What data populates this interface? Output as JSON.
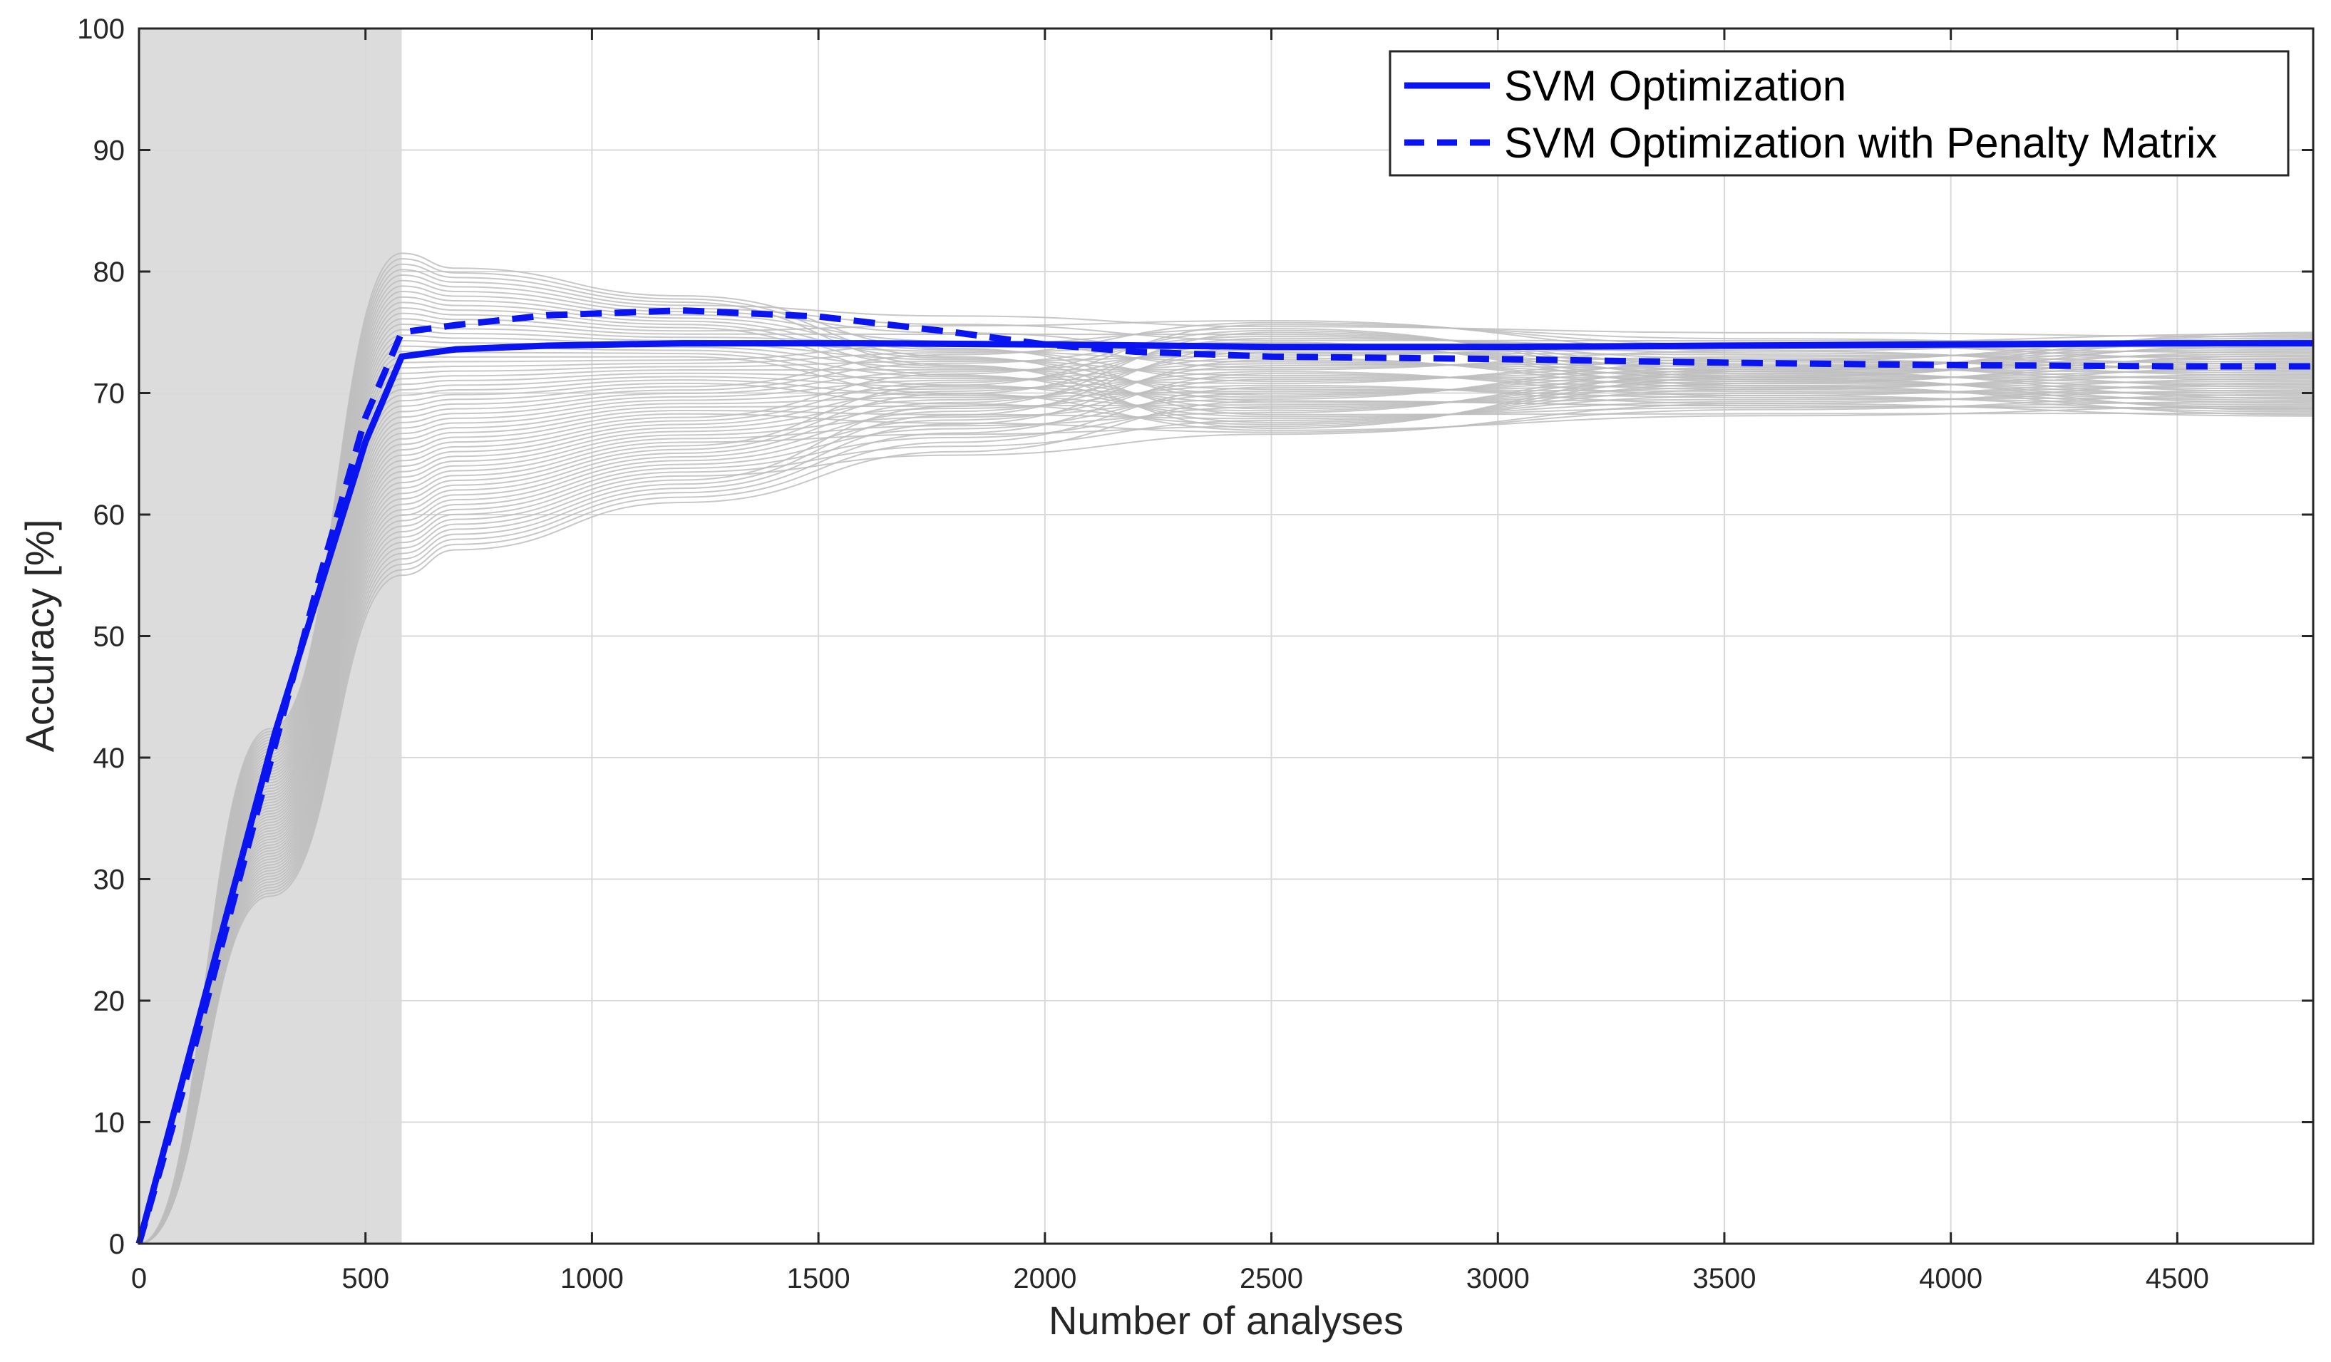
{
  "chart_data": {
    "type": "line",
    "title": "",
    "xlabel": "Number of analyses",
    "ylabel": "Accuracy [%]",
    "xlim": [
      0,
      4800
    ],
    "ylim": [
      0,
      100
    ],
    "grid": true,
    "legend_position": "top-right",
    "x_ticks": [
      0,
      500,
      1000,
      1500,
      2000,
      2500,
      3000,
      3500,
      4000,
      4500
    ],
    "x_tick_labels": [
      "0",
      "500",
      "1000",
      "1500",
      "2000",
      "2500",
      "3000",
      "3500",
      "4000",
      "4500"
    ],
    "y_ticks": [
      0,
      10,
      20,
      30,
      40,
      50,
      60,
      70,
      80,
      90,
      100
    ],
    "y_tick_labels": [
      "0",
      "10",
      "20",
      "30",
      "40",
      "50",
      "60",
      "70",
      "80",
      "90",
      "100"
    ],
    "shaded_region": {
      "x_range": [
        0,
        580
      ],
      "color": "#dcdcdc"
    },
    "background_runs": {
      "color": "#bdbdbd",
      "count": 60,
      "initial_ramp_end": 580,
      "value_range_at_580": [
        55,
        81.5
      ],
      "value_range_at_1200": [
        61,
        78
      ],
      "value_range_at_2500": [
        66.5,
        76
      ],
      "value_range_at_4800": [
        68,
        75
      ]
    },
    "series": [
      {
        "name": "SVM Optimization",
        "color": "#0a14f0",
        "dash": "solid",
        "x": [
          0,
          100,
          200,
          300,
          400,
          500,
          580,
          700,
          900,
          1200,
          1600,
          2000,
          2500,
          3000,
          3500,
          4000,
          4500,
          4800
        ],
        "y": [
          0,
          14,
          28,
          42,
          54,
          66,
          73,
          73.6,
          73.9,
          74.1,
          74.1,
          74.0,
          73.8,
          73.8,
          73.9,
          74.0,
          74.1,
          74.1
        ]
      },
      {
        "name": "SVM Optimization with Penalty Matrix",
        "color": "#0a14f0",
        "dash": "dashed",
        "x": [
          0,
          100,
          200,
          300,
          400,
          500,
          580,
          700,
          900,
          1200,
          1500,
          1800,
          2000,
          2200,
          2500,
          3000,
          3500,
          4000,
          4500,
          4800
        ],
        "y": [
          0,
          13,
          27,
          41,
          55,
          68,
          75,
          75.6,
          76.4,
          76.8,
          76.3,
          75.0,
          74.0,
          73.4,
          73.0,
          72.8,
          72.5,
          72.3,
          72.2,
          72.2
        ]
      }
    ]
  }
}
